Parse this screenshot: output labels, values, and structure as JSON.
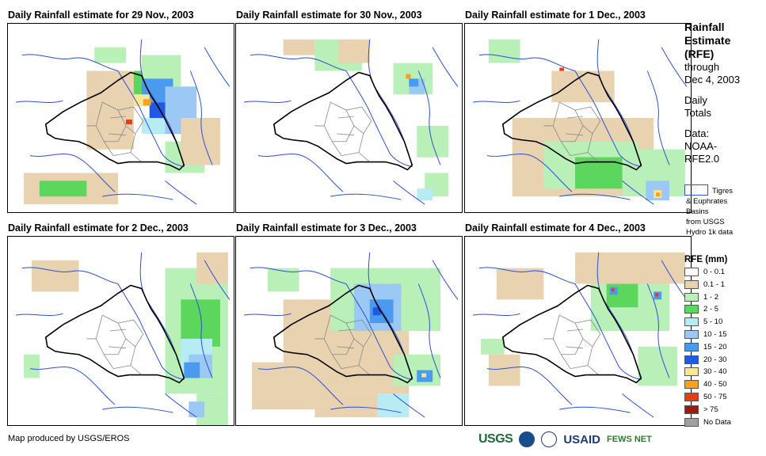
{
  "panels": [
    {
      "title": "Daily Rainfall estimate for 29 Nov., 2003",
      "rain": "heavy-north-central"
    },
    {
      "title": "Daily Rainfall estimate for 30 Nov., 2003",
      "rain": "light-north"
    },
    {
      "title": "Daily Rainfall estimate for 1 Dec., 2003",
      "rain": "south-east"
    },
    {
      "title": "Daily Rainfall estimate for 2 Dec., 2003",
      "rain": "east"
    },
    {
      "title": "Daily Rainfall estimate for 3 Dec., 2003",
      "rain": "widespread"
    },
    {
      "title": "Daily Rainfall estimate for 4 Dec., 2003",
      "rain": "north-east"
    }
  ],
  "side": {
    "heading": [
      "Rainfall",
      "Estimate",
      "(RFE)"
    ],
    "through": "through",
    "date": "Dec 4, 2003",
    "daily": "Daily",
    "totals": "Totals",
    "data_label": "Data:",
    "source_1": "NOAA-",
    "source_2": "RFE2.0"
  },
  "basin_legend": {
    "line1": "Tigres",
    "line2": "& Euphrates",
    "line3": "Basins",
    "line4": "from USGS",
    "line5": "Hydro 1k data"
  },
  "legend": {
    "title": "RFE (mm)",
    "items": [
      {
        "label": "0 - 0.1",
        "color": "#ffffff"
      },
      {
        "label": "0.1 - 1",
        "color": "#e8d2b0"
      },
      {
        "label": "1 - 2",
        "color": "#b8f0b8"
      },
      {
        "label": "2 - 5",
        "color": "#5cd65c"
      },
      {
        "label": "5 - 10",
        "color": "#b8ecf5"
      },
      {
        "label": "10 - 15",
        "color": "#9cc8f5"
      },
      {
        "label": "15 - 20",
        "color": "#4a9af0"
      },
      {
        "label": "20 - 30",
        "color": "#1e5ae6"
      },
      {
        "label": "30 - 40",
        "color": "#f8e690"
      },
      {
        "label": "40 - 50",
        "color": "#f5a21e"
      },
      {
        "label": "50 - 75",
        "color": "#e83c14"
      },
      {
        "label": "> 75",
        "color": "#9a1a14"
      },
      {
        "label": "No Data",
        "color": "#a0a0a0"
      }
    ]
  },
  "footer": {
    "credit": "Map produced by USGS/EROS",
    "logo_usgs": "USGS",
    "logo_usaid": "USAID",
    "logo_fews": "FEWS NET"
  }
}
